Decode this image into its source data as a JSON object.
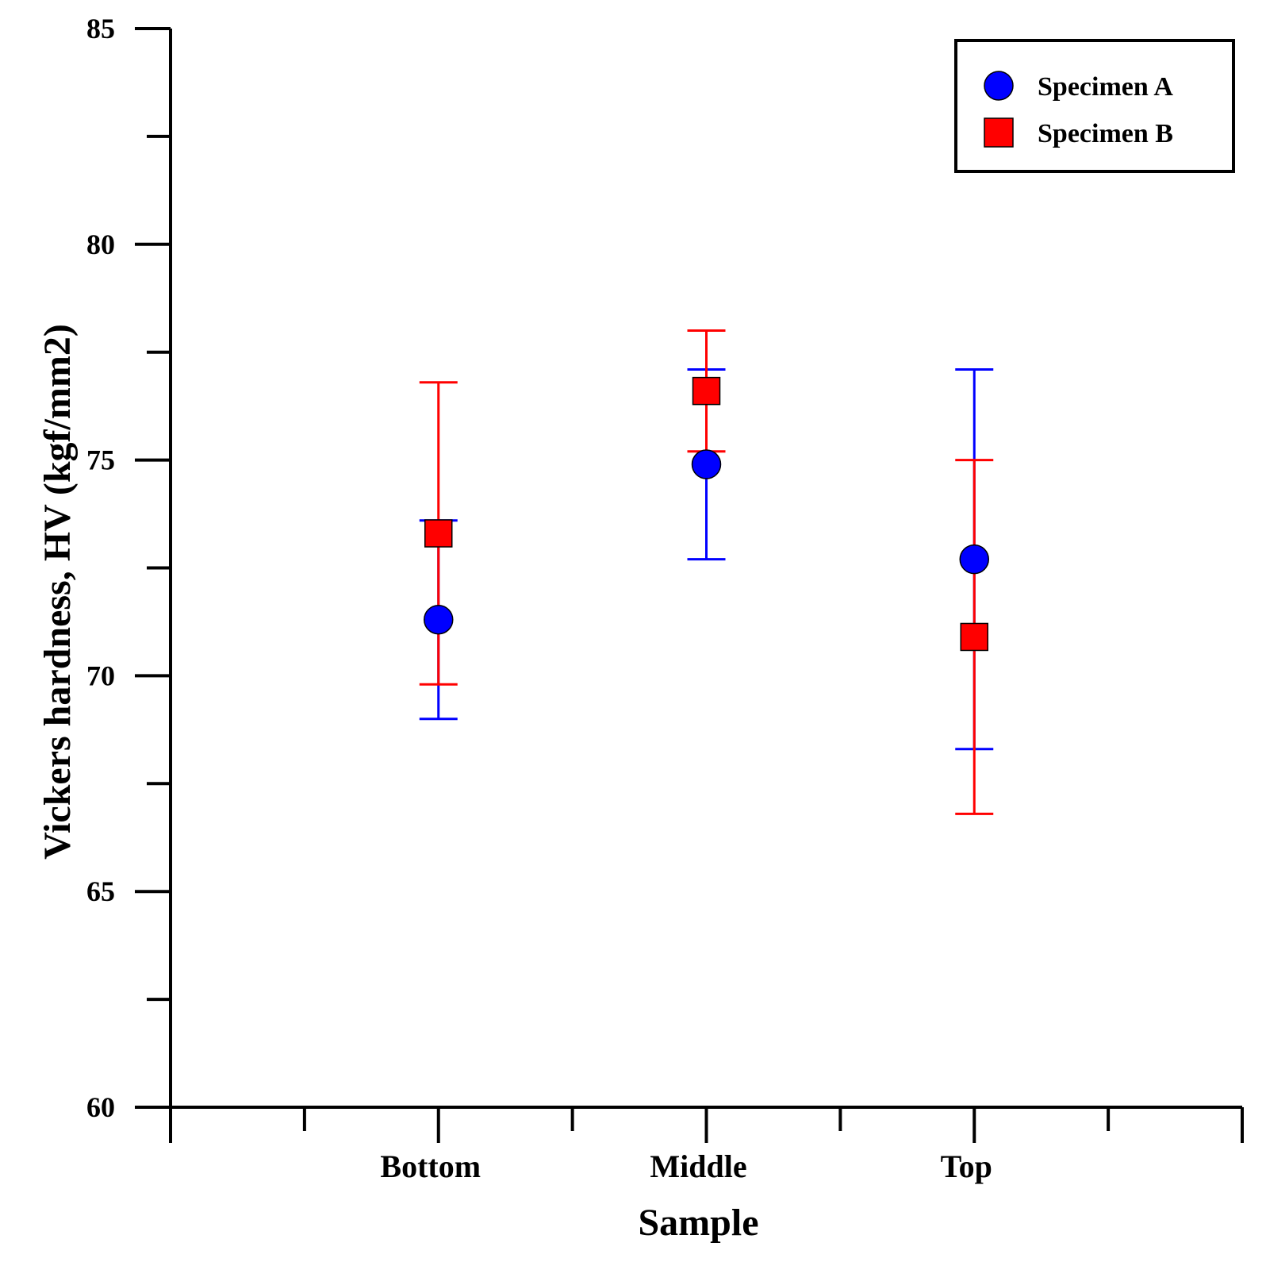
{
  "chart_data": {
    "type": "scatter",
    "title": "",
    "xlabel": "Sample",
    "ylabel": "Vickers hardness, HV (kgf/mm2)",
    "categories": [
      "Bottom",
      "Middle",
      "Top"
    ],
    "ylim": [
      60,
      85
    ],
    "yticks_major": [
      60,
      65,
      70,
      75,
      80,
      85
    ],
    "yticks_minor": [
      62.5,
      67.5,
      72.5,
      77.5,
      82.5
    ],
    "grid": false,
    "legend_position": "top-right",
    "series": [
      {
        "name": "Specimen A",
        "marker": "circle",
        "color": "#0000ff",
        "values": [
          71.3,
          74.9,
          72.7
        ],
        "err_low": [
          69.0,
          72.7,
          68.3
        ],
        "err_high": [
          73.6,
          77.1,
          77.1
        ]
      },
      {
        "name": "Specimen B",
        "marker": "square",
        "color": "#ff0000",
        "values": [
          73.3,
          76.6,
          70.9
        ],
        "err_low": [
          69.8,
          75.2,
          66.8
        ],
        "err_high": [
          76.8,
          78.0,
          75.0
        ]
      }
    ]
  }
}
